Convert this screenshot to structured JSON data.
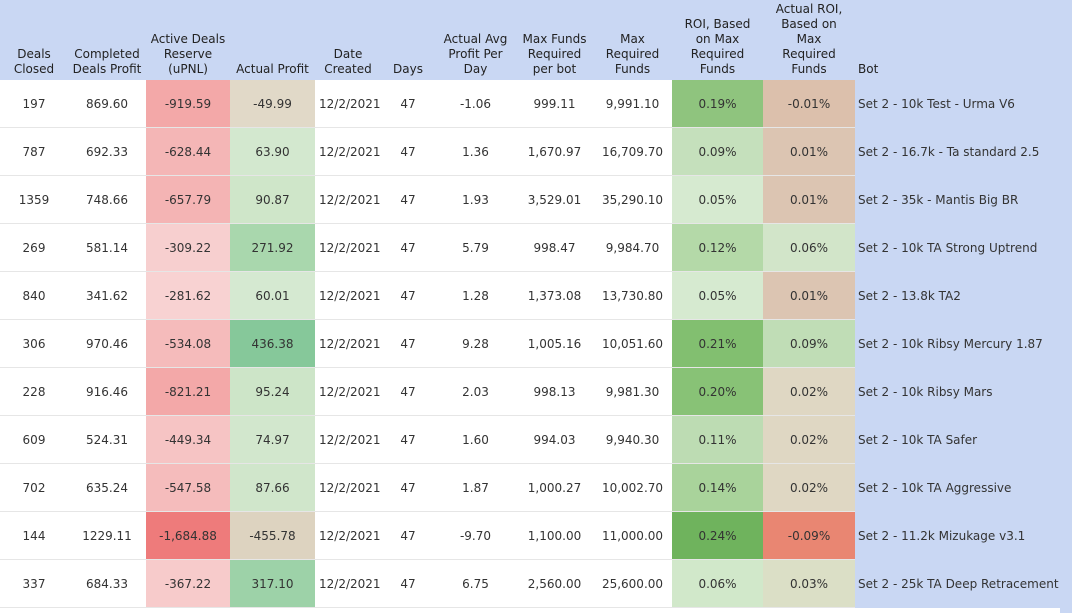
{
  "headers": {
    "deals_closed": [
      "Deals",
      "Closed"
    ],
    "completed_profit": [
      "Completed",
      "Deals Profit"
    ],
    "active_reserve": [
      "Active Deals",
      "Reserve",
      "(uPNL)"
    ],
    "actual_profit": [
      "Actual Profit"
    ],
    "date_created": [
      "Date",
      "Created"
    ],
    "days": [
      "Days"
    ],
    "avg_profit": [
      "Actual Avg",
      "Profit Per",
      "Day"
    ],
    "max_funds_bot": [
      "Max Funds",
      "Required",
      "per bot"
    ],
    "max_required": [
      "Max",
      "Required",
      "Funds"
    ],
    "roi_max": [
      "ROI, Based",
      "on Max",
      "Required",
      "Funds"
    ],
    "actual_roi": [
      "Actual ROI,",
      "Based on",
      "Max",
      "Required",
      "Funds"
    ],
    "bot": [
      "Bot"
    ]
  },
  "rows": [
    {
      "deals_closed": "197",
      "completed_profit": "869.60",
      "active_reserve": "-919.59",
      "actual_profit": "-49.99",
      "date_created": "12/2/2021",
      "days": "47",
      "avg_profit": "-1.06",
      "max_funds_bot": "999.11",
      "max_required": "9,991.10",
      "roi_max": "0.19%",
      "actual_roi": "-0.01%",
      "bot": "Set 2 - 10k Test - Urma V6",
      "colors": {
        "active_reserve": "#f3a8a8",
        "actual_profit": "#e1d9c8",
        "roi_max": "#8fc47e",
        "actual_roi": "#dcc0ac"
      }
    },
    {
      "deals_closed": "787",
      "completed_profit": "692.33",
      "active_reserve": "-628.44",
      "actual_profit": "63.90",
      "date_created": "12/2/2021",
      "days": "47",
      "avg_profit": "1.36",
      "max_funds_bot": "1,670.97",
      "max_required": "16,709.70",
      "roi_max": "0.09%",
      "actual_roi": "0.01%",
      "bot": "Set 2 - 16.7k - Ta standard 2.5",
      "colors": {
        "active_reserve": "#f4b6b6",
        "actual_profit": "#d3e8cf",
        "roi_max": "#c5e0bc",
        "actual_roi": "#dcc5b2"
      }
    },
    {
      "deals_closed": "1359",
      "completed_profit": "748.66",
      "active_reserve": "-657.79",
      "actual_profit": "90.87",
      "date_created": "12/2/2021",
      "days": "47",
      "avg_profit": "1.93",
      "max_funds_bot": "3,529.01",
      "max_required": "35,290.10",
      "roi_max": "0.05%",
      "actual_roi": "0.01%",
      "bot": "Set 2 - 35k - Mantis Big BR",
      "colors": {
        "active_reserve": "#f4b4b4",
        "actual_profit": "#cfe6c9",
        "roi_max": "#d6ead0",
        "actual_roi": "#dcc5b2"
      }
    },
    {
      "deals_closed": "269",
      "completed_profit": "581.14",
      "active_reserve": "-309.22",
      "actual_profit": "271.92",
      "date_created": "12/2/2021",
      "days": "47",
      "avg_profit": "5.79",
      "max_funds_bot": "998.47",
      "max_required": "9,984.70",
      "roi_max": "0.12%",
      "actual_roi": "0.06%",
      "bot": "Set 2 - 10k TA Strong Uptrend",
      "colors": {
        "active_reserve": "#f7cfcf",
        "actual_profit": "#a9d7ad",
        "roi_max": "#b4d9a8",
        "actual_roi": "#d2e5c9"
      }
    },
    {
      "deals_closed": "840",
      "completed_profit": "341.62",
      "active_reserve": "-281.62",
      "actual_profit": "60.01",
      "date_created": "12/2/2021",
      "days": "47",
      "avg_profit": "1.28",
      "max_funds_bot": "1,373.08",
      "max_required": "13,730.80",
      "roi_max": "0.05%",
      "actual_roi": "0.01%",
      "bot": "Set 2 - 13.8k TA2",
      "colors": {
        "active_reserve": "#f8d2d2",
        "actual_profit": "#d5e9d1",
        "roi_max": "#d6ead0",
        "actual_roi": "#dcc5b2"
      }
    },
    {
      "deals_closed": "306",
      "completed_profit": "970.46",
      "active_reserve": "-534.08",
      "actual_profit": "436.38",
      "date_created": "12/2/2021",
      "days": "47",
      "avg_profit": "9.28",
      "max_funds_bot": "1,005.16",
      "max_required": "10,051.60",
      "roi_max": "0.21%",
      "actual_roi": "0.09%",
      "bot": "Set 2 - 10k Ribsy Mercury 1.87",
      "colors": {
        "active_reserve": "#f5bbbb",
        "actual_profit": "#86c89a",
        "roi_max": "#82bf70",
        "actual_roi": "#c0ddb6"
      }
    },
    {
      "deals_closed": "228",
      "completed_profit": "916.46",
      "active_reserve": "-821.21",
      "actual_profit": "95.24",
      "date_created": "12/2/2021",
      "days": "47",
      "avg_profit": "2.03",
      "max_funds_bot": "998.13",
      "max_required": "9,981.30",
      "roi_max": "0.20%",
      "actual_roi": "0.02%",
      "bot": "Set 2 - 10k Ribsy Mars",
      "colors": {
        "active_reserve": "#f3a8a8",
        "actual_profit": "#cde5c8",
        "roi_max": "#88c276",
        "actual_roi": "#dfd7c3"
      }
    },
    {
      "deals_closed": "609",
      "completed_profit": "524.31",
      "active_reserve": "-449.34",
      "actual_profit": "74.97",
      "date_created": "12/2/2021",
      "days": "47",
      "avg_profit": "1.60",
      "max_funds_bot": "994.03",
      "max_required": "9,940.30",
      "roi_max": "0.11%",
      "actual_roi": "0.02%",
      "bot": "Set 2 - 10k TA Safer",
      "colors": {
        "active_reserve": "#f6c4c4",
        "actual_profit": "#d2e7cd",
        "roi_max": "#bddcb3",
        "actual_roi": "#dfd7c3"
      }
    },
    {
      "deals_closed": "702",
      "completed_profit": "635.24",
      "active_reserve": "-547.58",
      "actual_profit": "87.66",
      "date_created": "12/2/2021",
      "days": "47",
      "avg_profit": "1.87",
      "max_funds_bot": "1,000.27",
      "max_required": "10,002.70",
      "roi_max": "0.14%",
      "actual_roi": "0.02%",
      "bot": "Set 2 - 10k TA Aggressive",
      "colors": {
        "active_reserve": "#f5bcbc",
        "actual_profit": "#d0e6cb",
        "roi_max": "#a9d39b",
        "actual_roi": "#dfd7c3"
      }
    },
    {
      "deals_closed": "144",
      "completed_profit": "1229.11",
      "active_reserve": "-1,684.88",
      "actual_profit": "-455.78",
      "date_created": "12/2/2021",
      "days": "47",
      "avg_profit": "-9.70",
      "max_funds_bot": "1,100.00",
      "max_required": "11,000.00",
      "roi_max": "0.24%",
      "actual_roi": "-0.09%",
      "bot": "Set 2 - 11.2k Mizukage v3.1",
      "colors": {
        "active_reserve": "#ee7b7b",
        "actual_profit": "#ddd3c0",
        "roi_max": "#6fb35d",
        "actual_roi": "#e98672"
      }
    },
    {
      "deals_closed": "337",
      "completed_profit": "684.33",
      "active_reserve": "-367.22",
      "actual_profit": "317.10",
      "date_created": "12/2/2021",
      "days": "47",
      "avg_profit": "6.75",
      "max_funds_bot": "2,560.00",
      "max_required": "25,600.00",
      "roi_max": "0.06%",
      "actual_roi": "0.03%",
      "bot": "Set 2 - 25k TA Deep Retracement",
      "colors": {
        "active_reserve": "#f7cbcb",
        "actual_profit": "#9dd2a8",
        "roi_max": "#d1e8ca",
        "actual_roi": "#dbdfc6"
      }
    }
  ]
}
